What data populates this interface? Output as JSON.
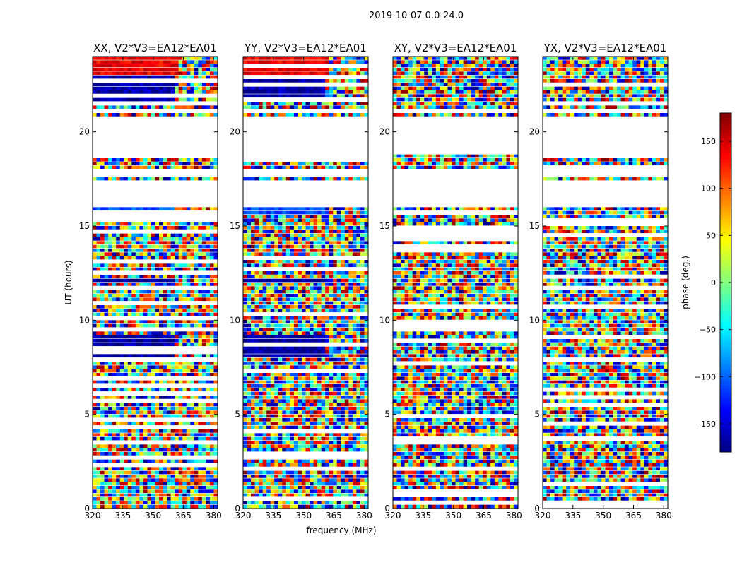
{
  "chart_data": {
    "type": "heatmap",
    "suptitle": "2019-10-07 0.0-24.0",
    "xlabel": "frequency (MHz)",
    "ylabel": "UT (hours)",
    "xlim": [
      320,
      382
    ],
    "ylim": [
      0,
      24
    ],
    "x_ticks": [
      320,
      335,
      350,
      365,
      380
    ],
    "y_ticks": [
      0,
      5,
      10,
      15,
      20
    ],
    "panels": [
      {
        "title": "XX, V2*V3=EA12*EA01",
        "pol": "XX"
      },
      {
        "title": "YY, V2*V3=EA12*EA01",
        "pol": "YY"
      },
      {
        "title": "XY, V2*V3=EA12*EA01",
        "pol": "XY"
      },
      {
        "title": "YX, V2*V3=EA12*EA01",
        "pol": "YX"
      }
    ],
    "colorbar": {
      "label": "phase (deg.)",
      "vmin": -180,
      "vmax": 180,
      "ticks": [
        -150,
        -100,
        -50,
        0,
        50,
        100,
        150
      ],
      "colormap": "jet"
    },
    "flagged_ut_ranges": [
      [
        16.0,
        17.3
      ],
      [
        17.5,
        18.0
      ],
      [
        18.8,
        20.8
      ],
      [
        21.0,
        21.2
      ]
    ],
    "coherent_features": [
      {
        "pols": [
          "XX",
          "YY"
        ],
        "ut": [
          23.0,
          24.0
        ],
        "freq": [
          320,
          362
        ],
        "phase": 140
      },
      {
        "pols": [
          "XX",
          "YY"
        ],
        "ut": [
          21.6,
          22.9
        ],
        "freq": [
          320,
          360
        ],
        "phase": -165
      },
      {
        "pols": [
          "XX",
          "YY"
        ],
        "ut": [
          15.6,
          16.0
        ],
        "freq": [
          320,
          360
        ],
        "phase": -110
      },
      {
        "pols": [
          "XX",
          "YY"
        ],
        "ut": [
          11.9,
          12.2
        ],
        "freq": [
          320,
          360
        ],
        "phase": -175
      },
      {
        "pols": [
          "XX",
          "YY"
        ],
        "ut": [
          8.0,
          9.2
        ],
        "freq": [
          320,
          360
        ],
        "phase": -170
      }
    ]
  }
}
